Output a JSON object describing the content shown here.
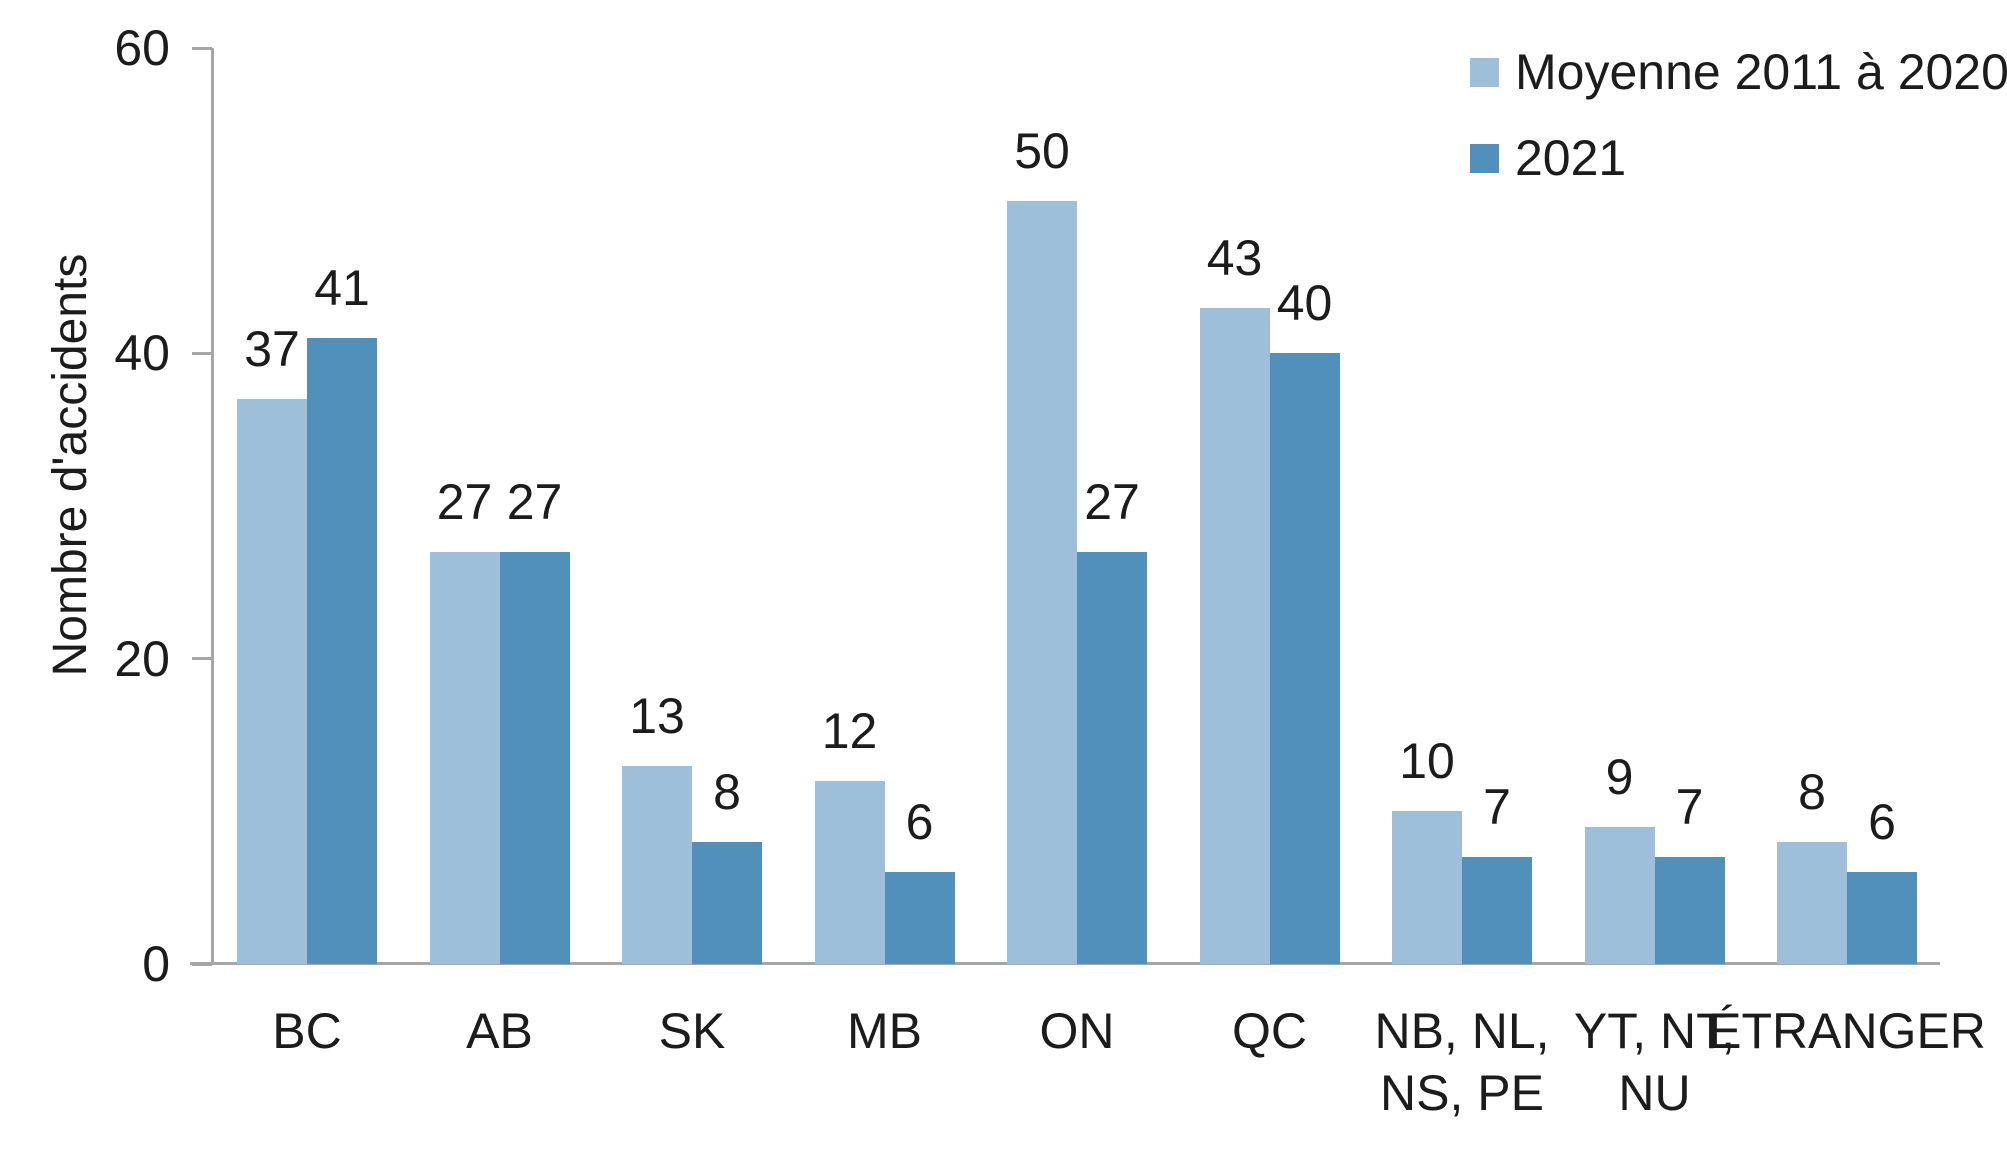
{
  "chart_data": {
    "type": "bar",
    "title": "",
    "xlabel": "",
    "ylabel": "Nombre d'accidents",
    "ylim": [
      0,
      60
    ],
    "yticks": [
      0,
      20,
      40,
      60
    ],
    "grid": false,
    "legend_position": "top-right",
    "bar_value_labels": true,
    "categories": [
      "BC",
      "AB",
      "SK",
      "MB",
      "ON",
      "QC",
      "NB, NL,\nNS, PE",
      "YT, NT,\nNU",
      "ÉTRANGER"
    ],
    "series": [
      {
        "name": "Moyenne 2011 à 2020",
        "color": "#9EBFDA",
        "values": [
          37,
          27,
          13,
          12,
          50,
          43,
          10,
          9,
          8
        ]
      },
      {
        "name": "2021",
        "color": "#5090BB",
        "values": [
          41,
          27,
          8,
          6,
          27,
          40,
          7,
          7,
          6
        ]
      }
    ]
  },
  "colors": {
    "axis": "#A6A6A6",
    "text": "#1C1C1C",
    "background": "#FFFFFF"
  }
}
